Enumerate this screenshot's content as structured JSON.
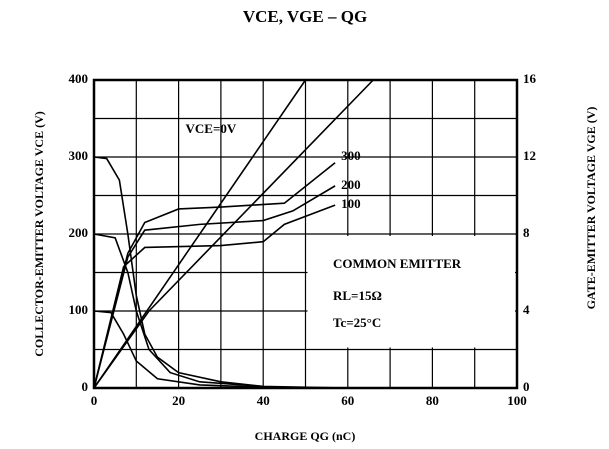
{
  "chart_data": {
    "type": "line",
    "title": "VCE, VGE – QG",
    "xlabel": "CHARGE QG (nC)",
    "ylabel": "COLLECTOR-EMITTER VOLTAGE VCE (V)",
    "y2label": "GATE-EMITTER VOLTAGE VGE (V)",
    "xlim": [
      0,
      100
    ],
    "xticks": [
      0,
      20,
      40,
      60,
      80,
      100
    ],
    "ylim": [
      0,
      400
    ],
    "yticks": [
      0,
      100,
      200,
      300,
      400
    ],
    "y2lim": [
      0,
      16
    ],
    "y2ticks": [
      0,
      4,
      8,
      12,
      16
    ],
    "grid": true,
    "annotations": [
      "COMMON EMITTER",
      "RL=15Ω",
      "Tc=25°C"
    ],
    "series": [
      {
        "name": "VCE=0V",
        "color": "#000000",
        "axis": "y2",
        "x": [
          0,
          50
        ],
        "values": [
          0,
          16
        ]
      },
      {
        "color": "#000000",
        "axis": "y2",
        "x": [
          0,
          13,
          66
        ],
        "values": [
          0,
          4,
          16
        ]
      },
      {
        "name": "300",
        "color": "#000000",
        "axis": "y2",
        "x": [
          0,
          8,
          12,
          20,
          30,
          45,
          57
        ],
        "values": [
          0,
          7,
          8.6,
          9.3,
          9.4,
          9.6,
          11.7
        ]
      },
      {
        "name": "200",
        "color": "#000000",
        "axis": "y2",
        "x": [
          0,
          8,
          12,
          25,
          40,
          47,
          57
        ],
        "values": [
          0,
          6.8,
          8.2,
          8.5,
          8.7,
          9.2,
          10.5
        ]
      },
      {
        "name": "100",
        "color": "#000000",
        "axis": "y2",
        "x": [
          0,
          7,
          12,
          30,
          40,
          45,
          57
        ],
        "values": [
          0,
          6.3,
          7.3,
          7.4,
          7.6,
          8.5,
          9.5
        ]
      },
      {
        "color": "#000000",
        "x": [
          0,
          3,
          6,
          8,
          10,
          12,
          15,
          20,
          30,
          40,
          60
        ],
        "values": [
          300,
          298,
          270,
          200,
          120,
          70,
          40,
          20,
          8,
          2,
          0
        ]
      },
      {
        "color": "#000000",
        "x": [
          0,
          5,
          8,
          10,
          13,
          18,
          25,
          40
        ],
        "values": [
          200,
          195,
          150,
          100,
          50,
          20,
          8,
          2
        ]
      },
      {
        "color": "#000000",
        "x": [
          0,
          4,
          7,
          10,
          15,
          25,
          40
        ],
        "values": [
          100,
          98,
          70,
          35,
          12,
          4,
          1
        ]
      }
    ]
  }
}
